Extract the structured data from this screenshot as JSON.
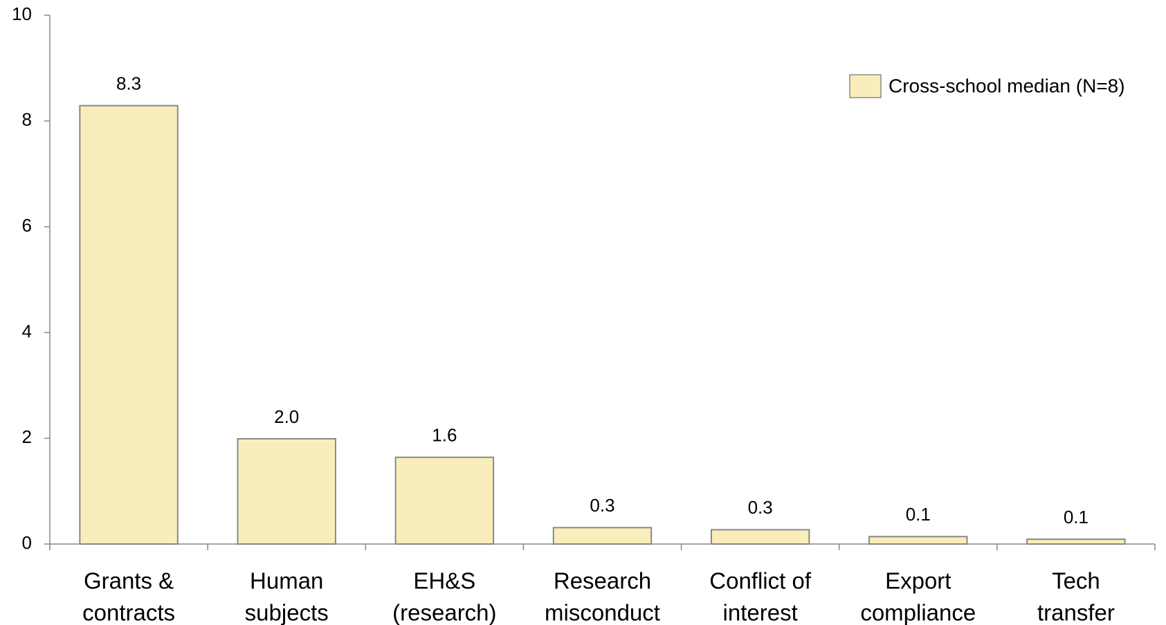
{
  "chart_data": {
    "type": "bar",
    "categories": [
      [
        "Grants &",
        "contracts"
      ],
      [
        "Human",
        "subjects"
      ],
      [
        "EH&S",
        "(research)"
      ],
      [
        "Research",
        "misconduct"
      ],
      [
        "Conflict of",
        "interest"
      ],
      [
        "Export",
        "compliance"
      ],
      [
        "Tech",
        "transfer"
      ]
    ],
    "series": [
      {
        "name": "Cross-school median (N=8)",
        "color": "#f9eebb",
        "values": [
          8.29,
          1.99,
          1.64,
          0.31,
          0.27,
          0.14,
          0.09
        ],
        "value_labels": [
          "8.3",
          "2.0",
          "1.6",
          "0.3",
          "0.3",
          "0.1",
          "0.1"
        ]
      }
    ],
    "ylim": [
      0,
      10
    ],
    "yticks": [
      0,
      2,
      4,
      6,
      8,
      10
    ],
    "grid": false,
    "legend": "top-right"
  }
}
